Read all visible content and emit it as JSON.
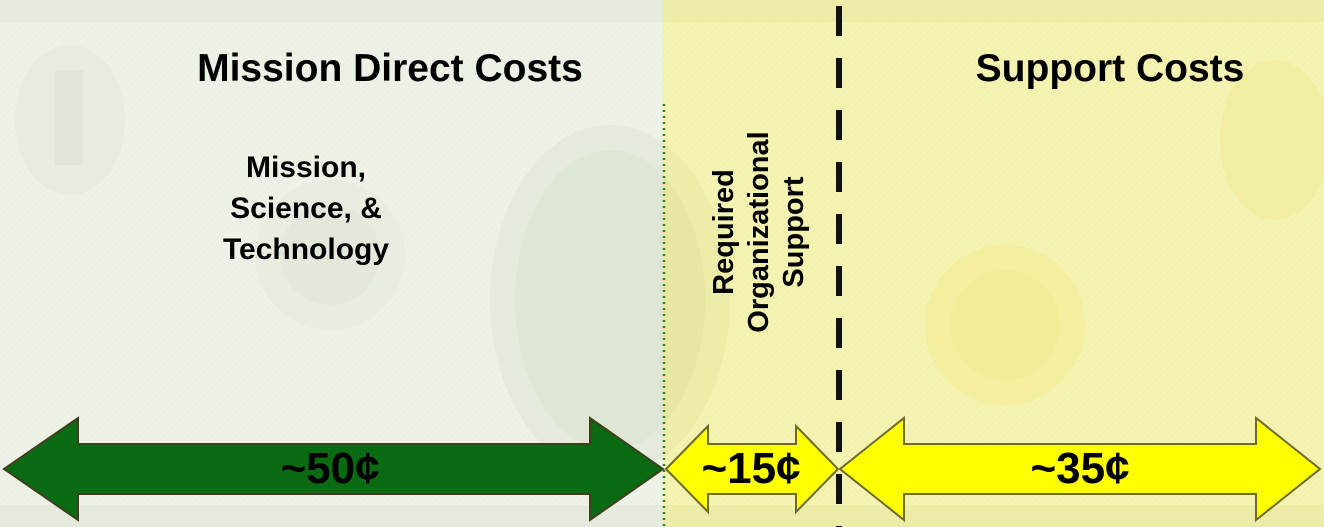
{
  "title": "Mission Direct Costs",
  "support_title": "Support Costs",
  "mission_label_lines": [
    "Mission,",
    "Science, &",
    "Technology"
  ],
  "org_support_lines": [
    "Required",
    "Organizational",
    "Support"
  ],
  "segments": [
    {
      "value": "~50¢",
      "cents": 50,
      "color": "#0a6b12"
    },
    {
      "value": "~15¢",
      "cents": 15,
      "color": "#ffff00"
    },
    {
      "value": "~35¢",
      "cents": 35,
      "color": "#ffff00"
    }
  ],
  "colors": {
    "mission_overlay": "#eef5e8",
    "support_overlay": "#fbf7a0",
    "arrow_outline": "#6b6b2a"
  },
  "background_icon": "dollar-bill-image"
}
